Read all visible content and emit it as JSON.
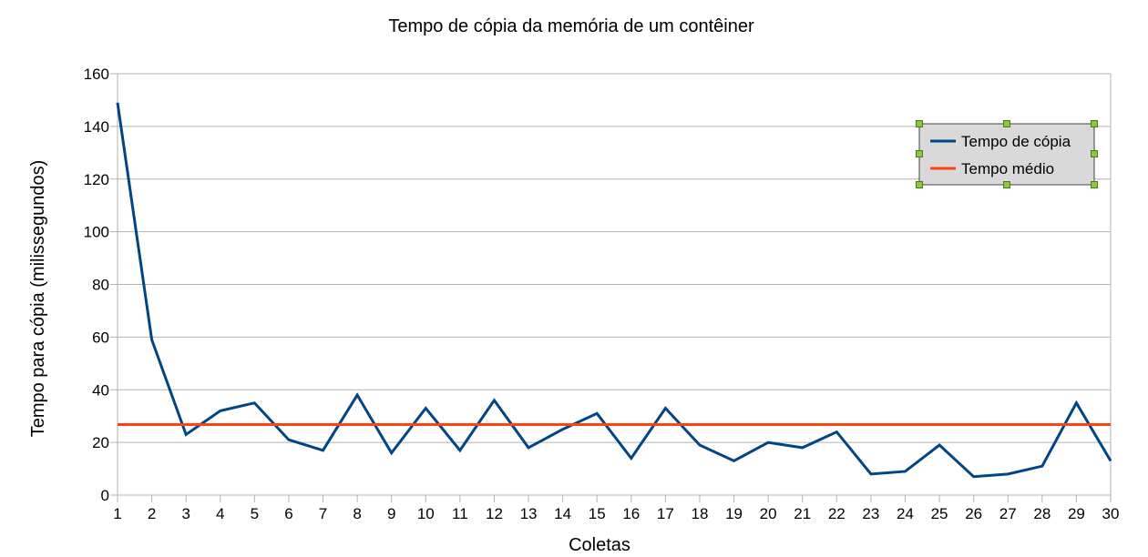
{
  "chart_data": {
    "type": "line",
    "title": "Tempo de cópia da memória de um contêiner",
    "xlabel": "Coletas",
    "ylabel": "Tempo para cópia (milissegundos)",
    "ylim": [
      0,
      160
    ],
    "yticks": [
      0,
      20,
      40,
      60,
      80,
      100,
      120,
      140,
      160
    ],
    "x": [
      1,
      2,
      3,
      4,
      5,
      6,
      7,
      8,
      9,
      10,
      11,
      12,
      13,
      14,
      15,
      16,
      17,
      18,
      19,
      20,
      21,
      22,
      23,
      24,
      25,
      26,
      27,
      28,
      29,
      30
    ],
    "grid": true,
    "legend_position": "top-right",
    "series": [
      {
        "name": "Tempo de cópia",
        "color": "#004586",
        "values": [
          149,
          59,
          23,
          32,
          35,
          21,
          17,
          38,
          16,
          33,
          17,
          36,
          18,
          25,
          31,
          14,
          33,
          19,
          13,
          20,
          18,
          24,
          8,
          9,
          19,
          7,
          8,
          11,
          35,
          13
        ]
      },
      {
        "name": "Tempo médio",
        "color": "#ff420e",
        "values": [
          26.8,
          26.8,
          26.8,
          26.8,
          26.8,
          26.8,
          26.8,
          26.8,
          26.8,
          26.8,
          26.8,
          26.8,
          26.8,
          26.8,
          26.8,
          26.8,
          26.8,
          26.8,
          26.8,
          26.8,
          26.8,
          26.8,
          26.8,
          26.8,
          26.8,
          26.8,
          26.8,
          26.8,
          26.8,
          26.8
        ]
      }
    ]
  }
}
